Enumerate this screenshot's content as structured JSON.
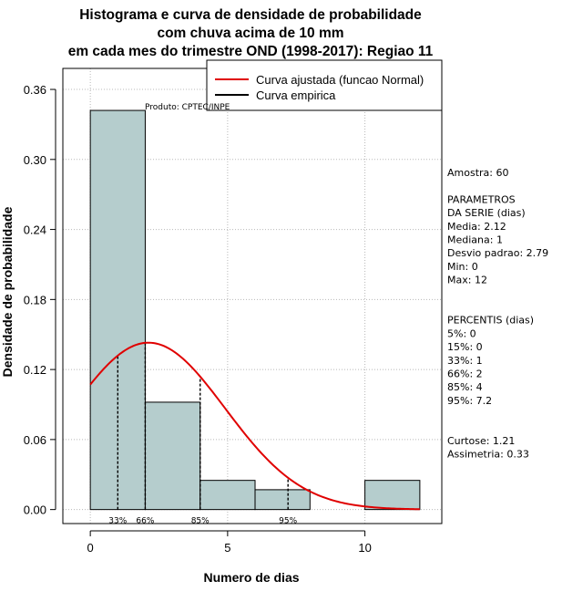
{
  "chart_data": {
    "type": "histogram",
    "title_lines": [
      "Histograma e curva de densidade de probabilidade",
      "com chuva acima de 10 mm",
      "em cada mes do trimestre OND (1998-2017): Regiao 11"
    ],
    "xlabel": "Numero de dias",
    "ylabel": "Densidade de probabilidade",
    "xlim": [
      -1,
      12.8
    ],
    "ylim": [
      -0.012,
      0.378
    ],
    "x_ticks": [
      0,
      5,
      10
    ],
    "y_ticks": [
      0.0,
      0.06,
      0.12,
      0.18,
      0.24,
      0.3,
      0.36
    ],
    "y_tick_labels": [
      "0.00",
      "0.06",
      "0.12",
      "0.18",
      "0.24",
      "0.30",
      "0.36"
    ],
    "x_grid": [
      0,
      5,
      10
    ],
    "bins": [
      {
        "start": 0,
        "end": 2,
        "density": 0.342
      },
      {
        "start": 2,
        "end": 4,
        "density": 0.092
      },
      {
        "start": 4,
        "end": 6,
        "density": 0.025
      },
      {
        "start": 6,
        "end": 8,
        "density": 0.017
      },
      {
        "start": 8,
        "end": 10,
        "density": 0.0
      },
      {
        "start": 10,
        "end": 12,
        "density": 0.025
      }
    ],
    "bar_color": "#b5cdcd",
    "curve_color": "#e00000",
    "normal_fit": {
      "mean": 2.12,
      "sd": 2.79,
      "x_range": [
        0,
        12
      ]
    },
    "percentile_lines": [
      {
        "x": 1,
        "label": "33%"
      },
      {
        "x": 2,
        "label": "66%"
      },
      {
        "x": 4,
        "label": "85%"
      },
      {
        "x": 7.2,
        "label": "95%"
      }
    ],
    "legend": [
      {
        "label": "Curva ajustada (funcao Normal)",
        "color": "#e00000"
      },
      {
        "label": "Curva empirica",
        "color": "#000000"
      }
    ],
    "legend_position": "top-right",
    "credit": "Produto: CPTEC/INPE"
  },
  "stats_panel": {
    "lines": [
      "Amostra: 60",
      "",
      " PARAMETROS",
      "DA SERIE (dias)",
      "  Media: 2.12",
      "  Mediana: 1",
      "  Desvio padrao: 2.79",
      "  Min: 0",
      "  Max: 12",
      "",
      "",
      "PERCENTIS (dias)",
      "   5%: 0",
      "   15%: 0",
      "   33%: 1",
      "   66%: 2",
      "   85%: 4",
      "   95%: 7.2",
      "",
      "",
      "    Curtose: 1.21",
      "Assimetria: 0.33"
    ]
  }
}
